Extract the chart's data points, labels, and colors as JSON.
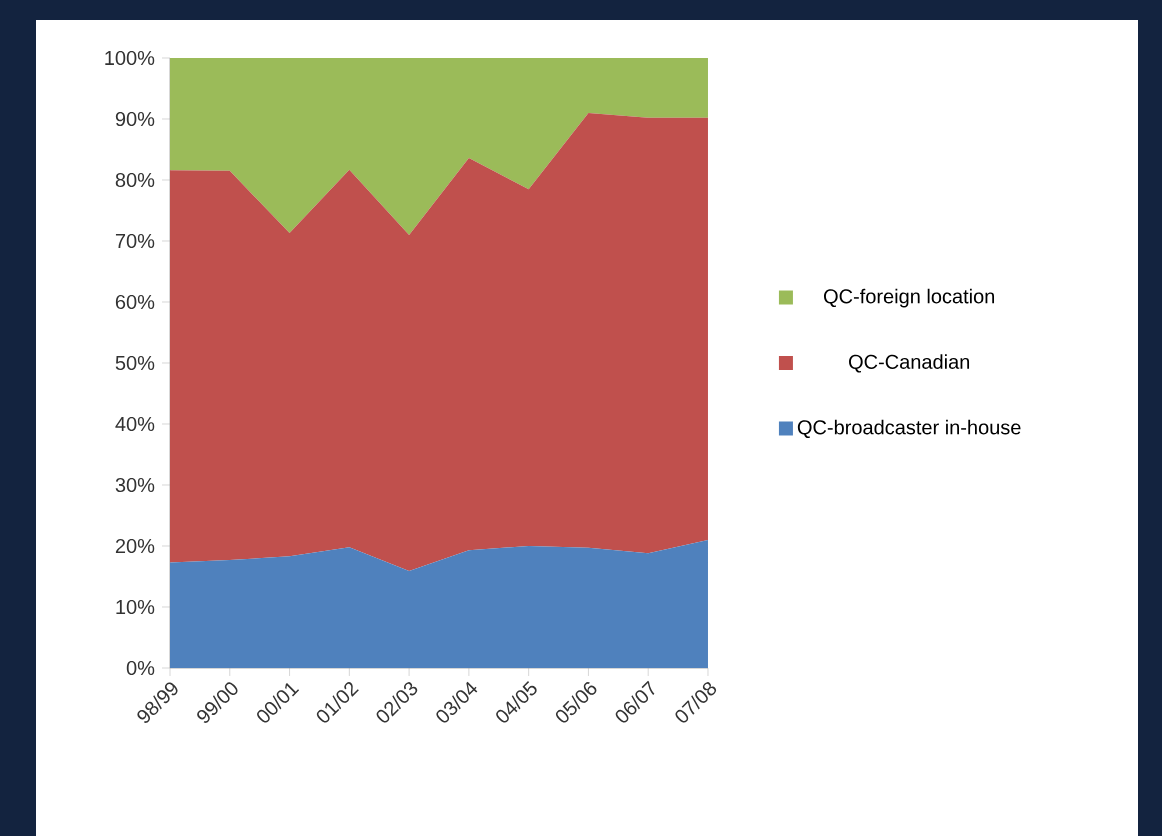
{
  "chart_data": {
    "type": "area",
    "stacked": true,
    "legend": "right",
    "grid": false,
    "categories": [
      "98/99",
      "99/00",
      "00/01",
      "01/02",
      "02/03",
      "03/04",
      "04/05",
      "05/06",
      "06/07",
      "07/08"
    ],
    "ylim": [
      0,
      100
    ],
    "yticks": [
      {
        "value": 0,
        "label": "0%"
      },
      {
        "value": 10,
        "label": "10%"
      },
      {
        "value": 20,
        "label": "20%"
      },
      {
        "value": 30,
        "label": "30%"
      },
      {
        "value": 40,
        "label": "40%"
      },
      {
        "value": 50,
        "label": "50%"
      },
      {
        "value": 60,
        "label": "60%"
      },
      {
        "value": 70,
        "label": "70%"
      },
      {
        "value": 80,
        "label": "80%"
      },
      {
        "value": 90,
        "label": "90%"
      },
      {
        "value": 100,
        "label": "100%"
      }
    ],
    "series": [
      {
        "name": "QC-broadcaster in-house",
        "color": "#4f81bd",
        "values": [
          17.3,
          17.7,
          18.3,
          19.8,
          15.9,
          19.3,
          20.0,
          19.7,
          18.8,
          21.0
        ]
      },
      {
        "name": "QC-Canadian",
        "color": "#c0504d",
        "values": [
          64.3,
          63.8,
          53.0,
          61.9,
          55.1,
          64.3,
          58.5,
          71.3,
          71.4,
          69.2
        ]
      },
      {
        "name": "QC-foreign location",
        "color": "#9bbb59",
        "values": [
          18.4,
          18.5,
          28.7,
          18.3,
          29.0,
          16.4,
          21.5,
          9.0,
          9.8,
          9.8
        ]
      }
    ]
  }
}
